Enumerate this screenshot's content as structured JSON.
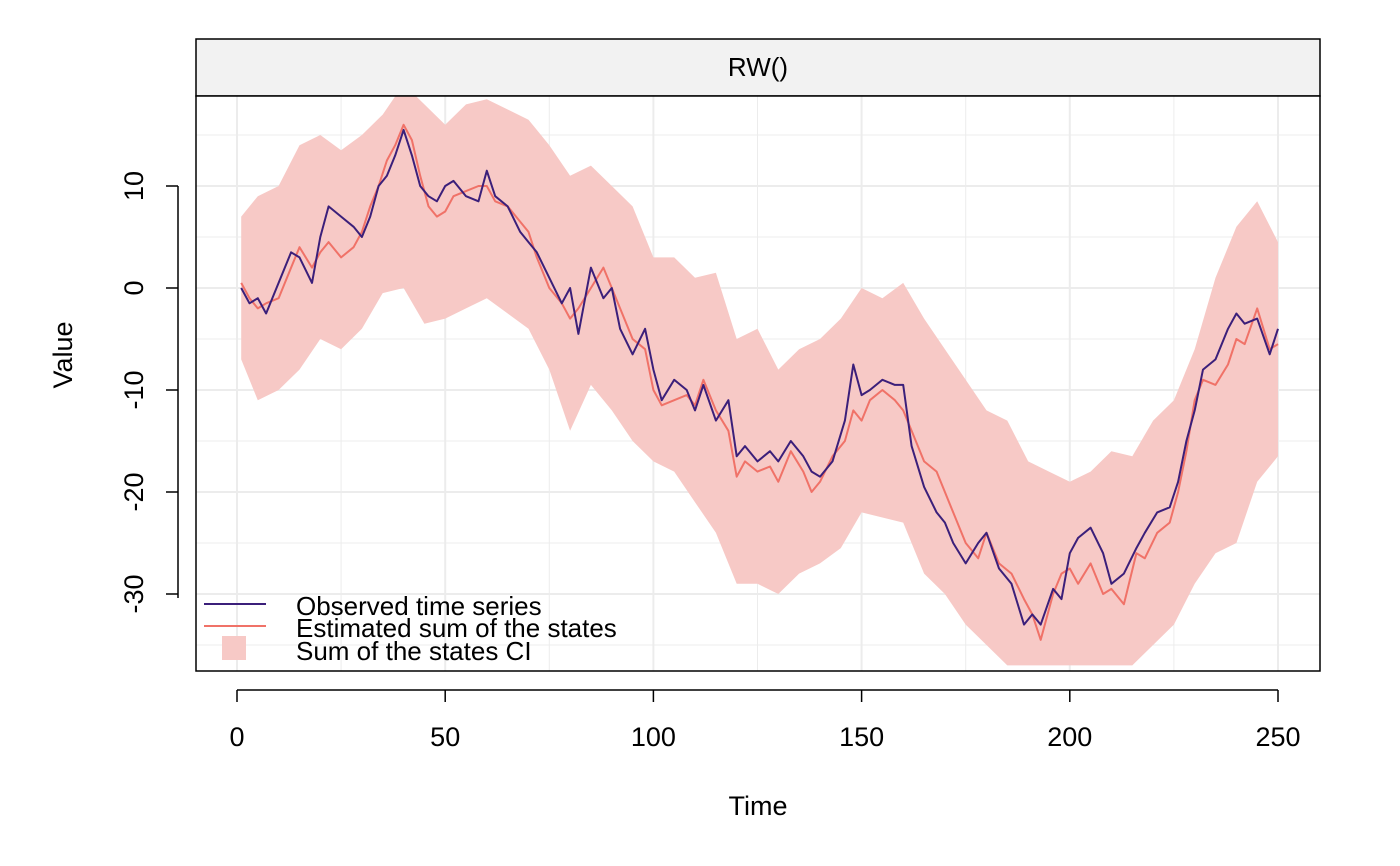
{
  "chart_data": {
    "type": "line",
    "strip_title": "RW()",
    "xlabel": "Time",
    "ylabel": "Value",
    "xlim": [
      -10,
      260
    ],
    "ylim": [
      -37,
      14.8
    ],
    "x_ticks": [
      0,
      50,
      100,
      150,
      200,
      250
    ],
    "y_ticks": [
      10,
      0,
      -10,
      -20,
      -30
    ],
    "grid": true,
    "legend_position": "bottom-left",
    "colors": {
      "observed": "#3b1f7a",
      "estimated": "#f07268",
      "ci": "#f7c9c6",
      "grid": "#ececec",
      "strip": "#f2f2f2"
    },
    "series": [
      {
        "name": "Observed time series",
        "kind": "line",
        "x": [
          1,
          3,
          5,
          7,
          10,
          13,
          15,
          18,
          20,
          22,
          25,
          28,
          30,
          32,
          34,
          36,
          38,
          40,
          42,
          44,
          46,
          48,
          50,
          52,
          55,
          58,
          60,
          62,
          65,
          68,
          70,
          72,
          75,
          78,
          80,
          82,
          85,
          88,
          90,
          92,
          95,
          98,
          100,
          102,
          105,
          108,
          110,
          112,
          115,
          118,
          120,
          122,
          125,
          128,
          130,
          133,
          136,
          138,
          140,
          143,
          146,
          148,
          150,
          152,
          155,
          158,
          160,
          162,
          165,
          168,
          170,
          172,
          175,
          178,
          180,
          183,
          186,
          189,
          191,
          193,
          196,
          198,
          200,
          202,
          205,
          208,
          210,
          213,
          216,
          218,
          221,
          224,
          226,
          228,
          230,
          232,
          235,
          238,
          240,
          242,
          245,
          248,
          250
        ],
        "y": [
          0,
          -1.5,
          -1,
          -2.5,
          0.5,
          3.5,
          3,
          0.5,
          5,
          8,
          7,
          6,
          5,
          7,
          10,
          11,
          13,
          15.5,
          13,
          10,
          9,
          8.5,
          10,
          10.5,
          9,
          8.5,
          11.5,
          9,
          8,
          5.5,
          4.5,
          3.5,
          1,
          -1.5,
          0,
          -4.5,
          2,
          -1,
          0,
          -4,
          -6.5,
          -4,
          -8,
          -11,
          -9,
          -10,
          -12,
          -9.5,
          -13,
          -11,
          -16.5,
          -15.5,
          -17,
          -16,
          -17,
          -15,
          -16.5,
          -18,
          -18.5,
          -17,
          -13,
          -7.5,
          -10.5,
          -10,
          -9,
          -9.5,
          -9.5,
          -15.5,
          -19.5,
          -22,
          -23,
          -25,
          -27,
          -25,
          -24,
          -27.5,
          -29,
          -33,
          -32,
          -33,
          -29.5,
          -30.5,
          -26,
          -24.5,
          -23.5,
          -26,
          -29,
          -28,
          -25.5,
          -24,
          -22,
          -21.5,
          -19,
          -15,
          -12,
          -8,
          -7,
          -4,
          -2.5,
          -3.5,
          -3,
          -6.5,
          -4
        ]
      },
      {
        "name": "Estimated sum of the states",
        "kind": "line",
        "x": [
          1,
          3,
          5,
          7,
          10,
          13,
          15,
          18,
          20,
          22,
          25,
          28,
          30,
          32,
          34,
          36,
          38,
          40,
          42,
          44,
          46,
          48,
          50,
          52,
          55,
          58,
          60,
          62,
          65,
          68,
          70,
          72,
          75,
          78,
          80,
          82,
          85,
          88,
          90,
          92,
          95,
          98,
          100,
          102,
          105,
          108,
          110,
          112,
          115,
          118,
          120,
          122,
          125,
          128,
          130,
          133,
          136,
          138,
          140,
          143,
          146,
          148,
          150,
          152,
          155,
          158,
          160,
          162,
          165,
          168,
          170,
          172,
          175,
          178,
          180,
          183,
          186,
          189,
          191,
          193,
          196,
          198,
          200,
          202,
          205,
          208,
          210,
          213,
          216,
          218,
          221,
          224,
          226,
          228,
          230,
          232,
          235,
          238,
          240,
          242,
          245,
          248,
          250
        ],
        "y": [
          0.5,
          -1,
          -2,
          -1.5,
          -1,
          2,
          4,
          2,
          3.5,
          4.5,
          3,
          4,
          5.5,
          8,
          10,
          12.5,
          14,
          16,
          14.5,
          11,
          8,
          7,
          7.5,
          9,
          9.5,
          10,
          10,
          8.5,
          8,
          6.5,
          5.5,
          3,
          0,
          -1.5,
          -3,
          -2,
          0,
          2,
          0,
          -2,
          -5,
          -6,
          -10,
          -11.5,
          -11,
          -10.5,
          -11.5,
          -9,
          -12,
          -14,
          -18.5,
          -17,
          -18,
          -17.5,
          -19,
          -16,
          -18,
          -20,
          -19,
          -16.5,
          -15,
          -12,
          -13,
          -11,
          -10,
          -11,
          -12,
          -14,
          -17,
          -18,
          -20,
          -22,
          -25,
          -26.5,
          -24,
          -27,
          -28,
          -30.5,
          -32,
          -34.5,
          -30,
          -28,
          -27.5,
          -29,
          -27,
          -30,
          -29.5,
          -31,
          -26,
          -26.5,
          -24,
          -23,
          -20,
          -16,
          -11,
          -9,
          -9.5,
          -7.5,
          -5,
          -5.5,
          -2,
          -6,
          -5.5
        ]
      },
      {
        "name": "Sum of the states CI",
        "kind": "band",
        "x": [
          1,
          5,
          10,
          15,
          20,
          25,
          30,
          35,
          40,
          45,
          50,
          55,
          60,
          65,
          70,
          75,
          80,
          85,
          90,
          95,
          100,
          105,
          110,
          115,
          120,
          125,
          130,
          135,
          140,
          145,
          150,
          155,
          160,
          165,
          170,
          175,
          180,
          185,
          190,
          195,
          200,
          205,
          210,
          215,
          220,
          225,
          230,
          235,
          240,
          245,
          250
        ],
        "lower": [
          -7,
          -11,
          -10,
          -8,
          -5,
          -6,
          -4,
          -0.5,
          0,
          -3.5,
          -3,
          -2,
          -1,
          -2.5,
          -4,
          -8,
          -14,
          -9.5,
          -12,
          -15,
          -17,
          -18,
          -21,
          -24,
          -29,
          -29,
          -30,
          -28,
          -27,
          -25.5,
          -22,
          -22.5,
          -23,
          -28,
          -30,
          -33,
          -35,
          -37,
          -37,
          -37,
          -37,
          -37,
          -37,
          -37,
          -35,
          -33,
          -29,
          -26,
          -25,
          -19,
          -16.5
        ],
        "upper": [
          7,
          9,
          10,
          14,
          15,
          13.5,
          15,
          17,
          20,
          18,
          16,
          18,
          18.5,
          17.5,
          16.5,
          14,
          11,
          12,
          10,
          8,
          3,
          3,
          1,
          1.5,
          -5,
          -4,
          -8,
          -6,
          -5,
          -3,
          0,
          -1,
          0.5,
          -3,
          -6,
          -9,
          -12,
          -13,
          -17,
          -18,
          -19,
          -18,
          -16,
          -16.5,
          -13,
          -11,
          -6,
          1,
          6,
          8.5,
          4.5
        ]
      }
    ]
  }
}
